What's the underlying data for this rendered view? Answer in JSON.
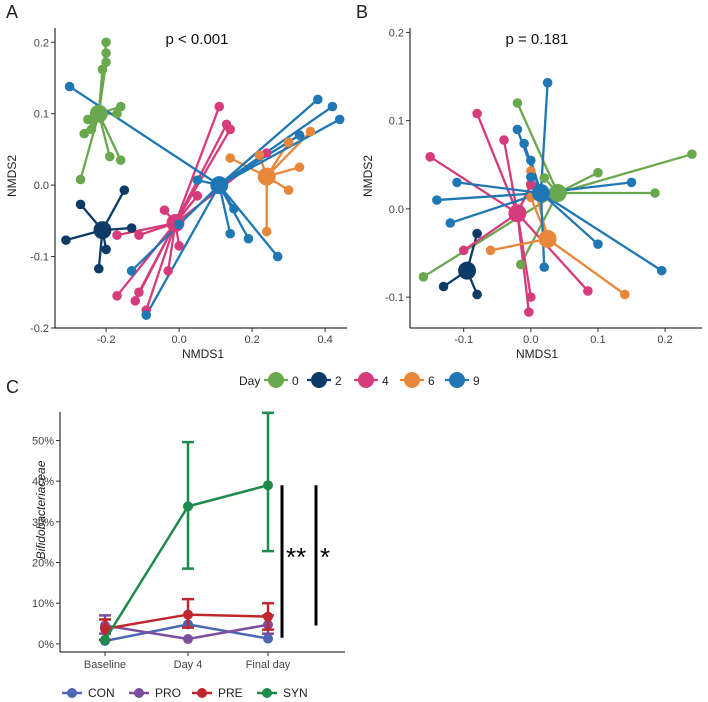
{
  "chart_data": [
    {
      "panel": "A",
      "type": "scatter",
      "title": "p < 0.001",
      "xlabel": "NMDS1",
      "ylabel": "NMDS2",
      "xlim": [
        -0.34,
        0.46
      ],
      "ylim": [
        -0.2,
        0.22
      ],
      "xticks": [
        "-0.2",
        "0.0",
        "0.2",
        "0.4"
      ],
      "xtick_values": [
        -0.2,
        0.0,
        0.2,
        0.4
      ],
      "yticks": [
        "0.2",
        "0.1",
        "0.0",
        "-0.1",
        "-0.2"
      ],
      "ytick_values": [
        0.2,
        0.1,
        0.0,
        -0.1,
        -0.2
      ],
      "groups": [
        {
          "day": "0",
          "color": "#6aa84f",
          "centroid": [
            -0.22,
            0.1
          ],
          "points": [
            [
              -0.2,
              0.2
            ],
            [
              -0.2,
              0.185
            ],
            [
              -0.2,
              0.172
            ],
            [
              -0.21,
              0.162
            ],
            [
              -0.16,
              0.11
            ],
            [
              -0.17,
              0.1
            ],
            [
              -0.25,
              0.092
            ],
            [
              -0.26,
              0.072
            ],
            [
              -0.24,
              0.078
            ],
            [
              -0.16,
              0.035
            ],
            [
              -0.19,
              0.04
            ],
            [
              -0.27,
              0.008
            ]
          ]
        },
        {
          "day": "2",
          "color": "#0d3b66",
          "centroid": [
            -0.21,
            -0.063
          ],
          "points": [
            [
              -0.15,
              -0.007
            ],
            [
              -0.27,
              -0.027
            ],
            [
              -0.31,
              -0.077
            ],
            [
              -0.13,
              -0.06
            ],
            [
              -0.2,
              -0.09
            ],
            [
              -0.22,
              -0.117
            ]
          ]
        },
        {
          "day": "4",
          "color": "#d63c7b",
          "centroid": [
            -0.01,
            -0.053
          ],
          "points": [
            [
              0.11,
              0.11
            ],
            [
              0.13,
              0.085
            ],
            [
              0.14,
              0.078
            ],
            [
              0.24,
              0.045
            ],
            [
              0.05,
              -0.015
            ],
            [
              -0.04,
              -0.035
            ],
            [
              -0.11,
              -0.07
            ],
            [
              -0.17,
              -0.07
            ],
            [
              0.0,
              -0.085
            ],
            [
              -0.03,
              -0.12
            ],
            [
              -0.11,
              -0.15
            ],
            [
              -0.17,
              -0.155
            ],
            [
              -0.12,
              -0.162
            ],
            [
              -0.09,
              -0.175
            ]
          ]
        },
        {
          "day": "6",
          "color": "#e8873a",
          "centroid": [
            0.24,
            0.012
          ],
          "points": [
            [
              0.36,
              0.075
            ],
            [
              0.3,
              0.06
            ],
            [
              0.22,
              0.042
            ],
            [
              0.14,
              0.038
            ],
            [
              0.33,
              0.025
            ],
            [
              0.3,
              -0.007
            ],
            [
              0.24,
              -0.065
            ]
          ]
        },
        {
          "day": "9",
          "color": "#1f77b4",
          "centroid": [
            0.11,
            0.0
          ],
          "points": [
            [
              -0.3,
              0.138
            ],
            [
              0.38,
              0.12
            ],
            [
              0.42,
              0.11
            ],
            [
              0.44,
              0.092
            ],
            [
              0.33,
              0.07
            ],
            [
              0.05,
              0.007
            ],
            [
              0.0,
              -0.055
            ],
            [
              0.15,
              -0.033
            ],
            [
              0.14,
              -0.068
            ],
            [
              0.19,
              -0.075
            ],
            [
              0.27,
              -0.1
            ],
            [
              -0.13,
              -0.12
            ],
            [
              -0.09,
              -0.182
            ]
          ]
        }
      ]
    },
    {
      "panel": "B",
      "type": "scatter",
      "title": "p = 0.181",
      "xlabel": "NMDS1",
      "ylabel": "NMDS2",
      "xlim": [
        -0.18,
        0.255
      ],
      "ylim": [
        -0.135,
        0.205
      ],
      "xticks": [
        "-0.1",
        "0.0",
        "0.1",
        "0.2"
      ],
      "xtick_values": [
        -0.1,
        0.0,
        0.1,
        0.2
      ],
      "yticks": [
        "0.2",
        "0.1",
        "0.0",
        "-0.1"
      ],
      "ytick_values": [
        0.2,
        0.1,
        0.0,
        -0.1
      ],
      "groups": [
        {
          "day": "0",
          "color": "#6aa84f",
          "centroid": [
            0.04,
            0.018
          ],
          "points": [
            [
              -0.02,
              0.12
            ],
            [
              0.02,
              0.035
            ],
            [
              0.1,
              0.041
            ],
            [
              0.24,
              0.062
            ],
            [
              0.185,
              0.018
            ],
            [
              -0.16,
              -0.077
            ],
            [
              -0.015,
              -0.063
            ]
          ]
        },
        {
          "day": "2",
          "color": "#0d3b66",
          "centroid": [
            -0.095,
            -0.07
          ],
          "points": [
            [
              -0.08,
              -0.028
            ],
            [
              -0.13,
              -0.088
            ],
            [
              -0.08,
              -0.097
            ]
          ]
        },
        {
          "day": "4",
          "color": "#d63c7b",
          "centroid": [
            -0.02,
            -0.005
          ],
          "points": [
            [
              -0.08,
              0.108
            ],
            [
              -0.04,
              0.078
            ],
            [
              0.0,
              0.028
            ],
            [
              -0.15,
              0.059
            ],
            [
              -0.025,
              -0.008
            ],
            [
              -0.1,
              -0.047
            ],
            [
              0.085,
              -0.093
            ],
            [
              0.0,
              -0.1
            ],
            [
              -0.003,
              -0.117
            ],
            [
              0.0,
              0.027
            ]
          ]
        },
        {
          "day": "6",
          "color": "#e8873a",
          "centroid": [
            0.025,
            -0.034
          ],
          "points": [
            [
              0.0,
              0.043
            ],
            [
              0.0,
              0.013
            ],
            [
              -0.06,
              -0.047
            ],
            [
              0.14,
              -0.097
            ]
          ]
        },
        {
          "day": "9",
          "color": "#1f77b4",
          "centroid": [
            0.015,
            0.018
          ],
          "points": [
            [
              0.025,
              0.143
            ],
            [
              -0.02,
              0.09
            ],
            [
              -0.01,
              0.074
            ],
            [
              0.0,
              0.055
            ],
            [
              0.0,
              0.036
            ],
            [
              -0.11,
              0.03
            ],
            [
              0.15,
              0.03
            ],
            [
              -0.14,
              0.01
            ],
            [
              -0.12,
              -0.016
            ],
            [
              0.1,
              -0.04
            ],
            [
              0.195,
              -0.07
            ],
            [
              0.02,
              -0.066
            ]
          ]
        }
      ]
    },
    {
      "panel": "C",
      "type": "line",
      "ylabel": "Bifidobacteriaceae",
      "categories": [
        "Baseline",
        "Day 4",
        "Final day"
      ],
      "ylim": [
        -2,
        57
      ],
      "yticks": [
        "0%",
        "10%",
        "20%",
        "30%",
        "40%",
        "50%"
      ],
      "ytick_values": [
        0,
        10,
        20,
        30,
        40,
        50
      ],
      "series": [
        {
          "name": "CON",
          "color": "#4c67b3",
          "values": [
            0.7,
            4.8,
            1.3
          ],
          "lower": [
            0.7,
            4.8,
            1.3
          ],
          "upper": [
            0.7,
            4.8,
            1.3
          ]
        },
        {
          "name": "PRO",
          "color": "#7b4f9d",
          "values": [
            4.5,
            1.2,
            4.7
          ],
          "lower": [
            2.5,
            1.2,
            2.5
          ],
          "upper": [
            7.0,
            1.2,
            7.0
          ]
        },
        {
          "name": "PRE",
          "color": "#c0272d",
          "values": [
            3.7,
            7.2,
            6.7
          ],
          "lower": [
            1.0,
            4.0,
            3.5
          ],
          "upper": [
            6.0,
            11.0,
            10.0
          ]
        },
        {
          "name": "SYN",
          "color": "#1e8a4c",
          "values": [
            1.0,
            33.8,
            39.0
          ],
          "lower": [
            1.0,
            18.5,
            22.8
          ],
          "upper": [
            1.0,
            49.6,
            56.8
          ]
        }
      ],
      "significance": [
        {
          "label": "**",
          "from": 1.5,
          "to": 39
        },
        {
          "label": "*",
          "from": 4.5,
          "to": 39
        }
      ]
    }
  ],
  "panel_labels": {
    "a": "A",
    "b": "B",
    "c": "C"
  },
  "legend_day": {
    "title": "Day",
    "items": [
      "0",
      "2",
      "4",
      "6",
      "9"
    ]
  },
  "legend_group": {
    "items": [
      "CON",
      "PRO",
      "PRE",
      "SYN"
    ]
  }
}
